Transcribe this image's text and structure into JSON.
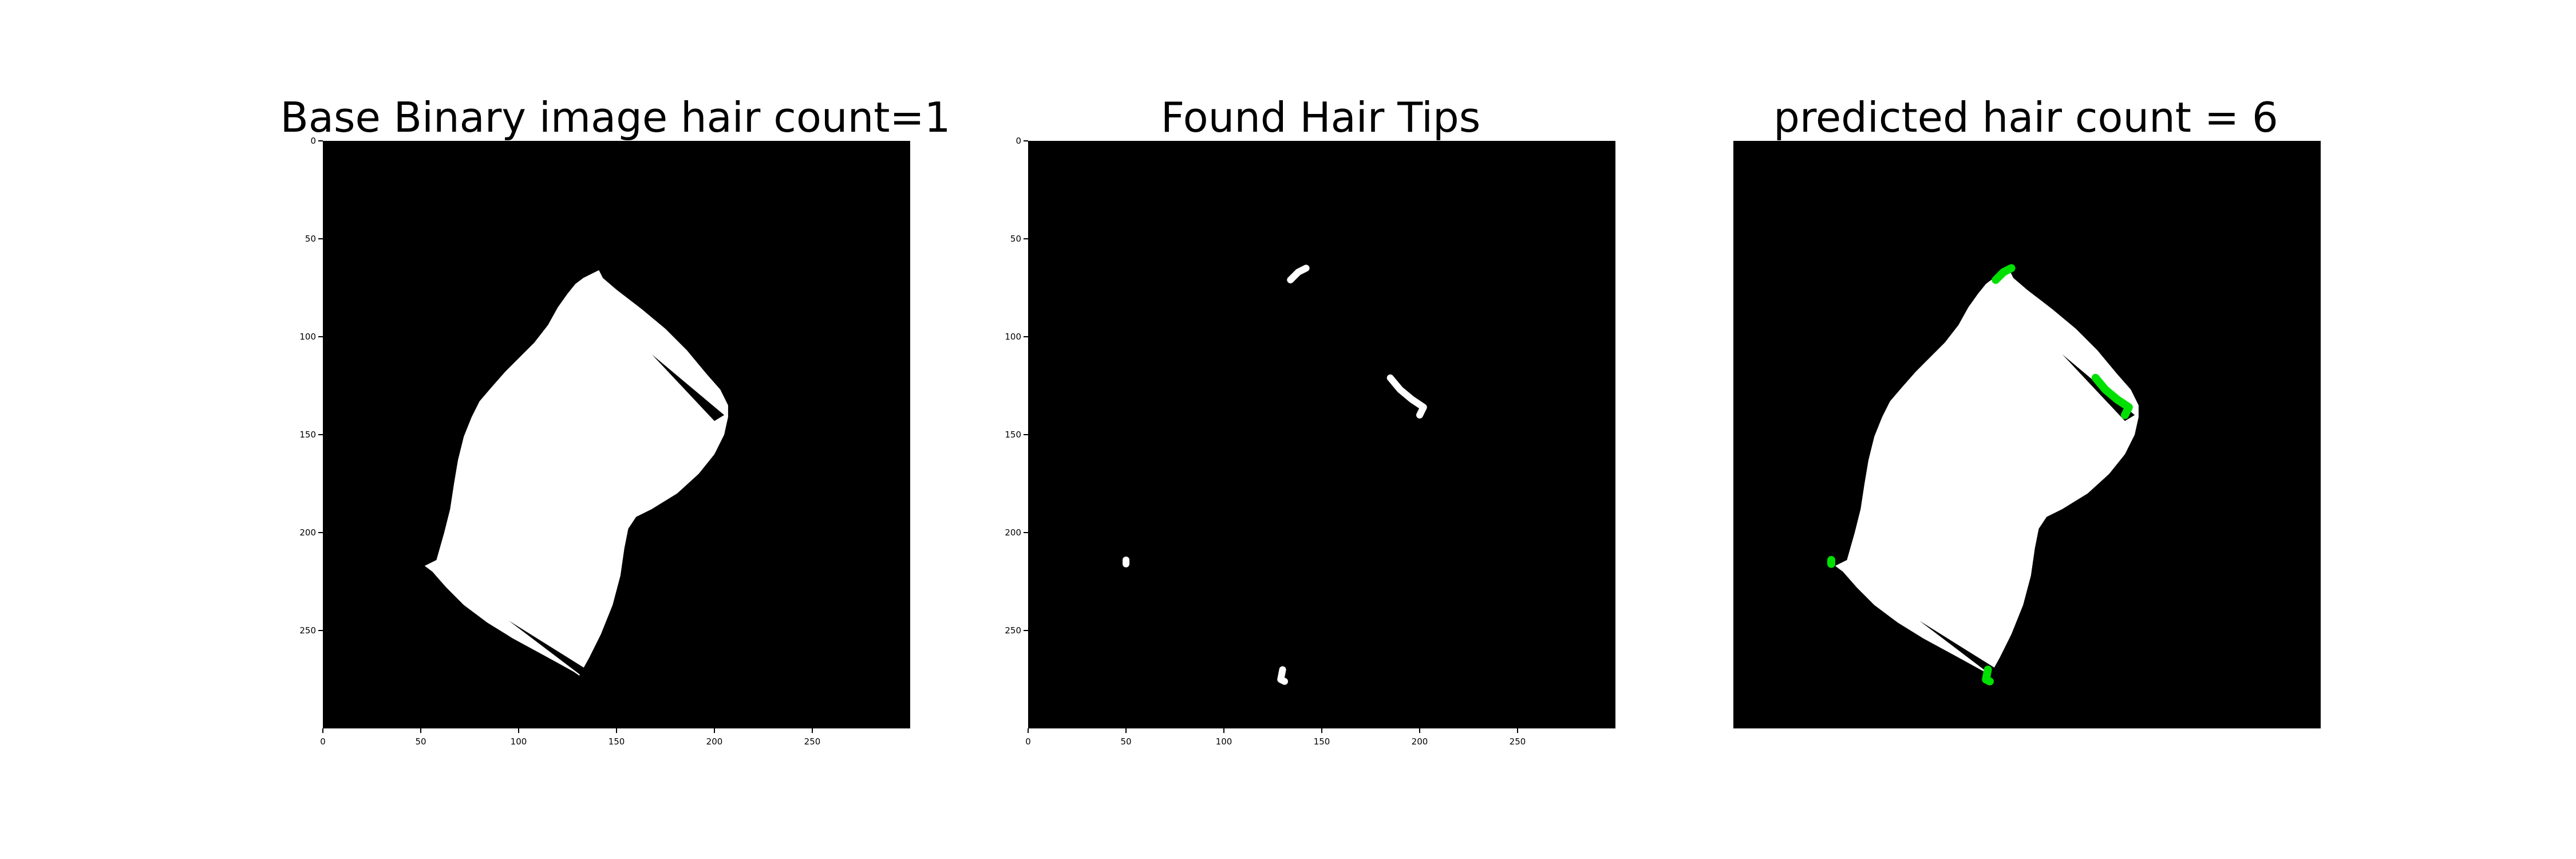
{
  "chart_data": [
    {
      "type": "image",
      "title": "Base Binary image hair count=1",
      "xlim": [
        0,
        300
      ],
      "ylim": [
        300,
        0
      ],
      "show_axes": true,
      "xticks": [
        0,
        50,
        100,
        150,
        200,
        250
      ],
      "yticks": [
        0,
        50,
        100,
        150,
        200,
        250
      ],
      "background": "#000000",
      "foreground": "#ffffff",
      "hair_count": 1
    },
    {
      "type": "image",
      "title": "Found Hair Tips",
      "xlim": [
        0,
        300
      ],
      "ylim": [
        300,
        0
      ],
      "show_axes": true,
      "xticks": [
        0,
        50,
        100,
        150,
        200,
        250
      ],
      "yticks": [
        0,
        50,
        100,
        150,
        200,
        250
      ],
      "background": "#000000",
      "foreground": "#ffffff"
    },
    {
      "type": "image",
      "title": "predicted hair count = 6",
      "xlim": [
        0,
        300
      ],
      "ylim": [
        300,
        0
      ],
      "show_axes": false,
      "background": "#000000",
      "foreground": "#ffffff",
      "highlight_color": "#00e000",
      "hair_count": 6
    }
  ]
}
